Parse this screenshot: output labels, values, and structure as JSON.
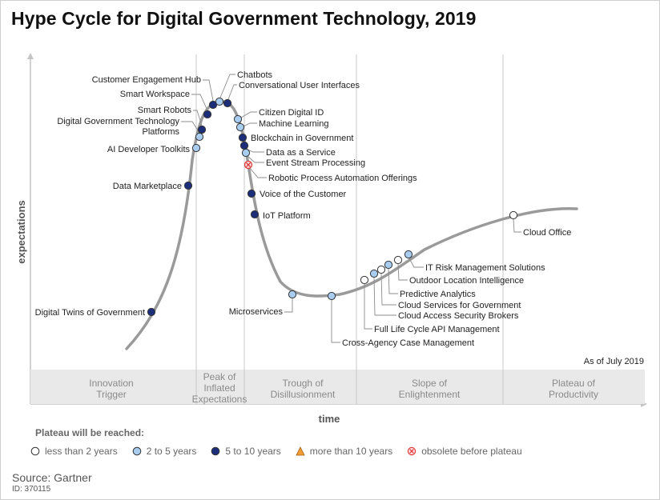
{
  "title": "Hype Cycle for Digital Government Technology, 2019",
  "axes": {
    "y_label": "expectations",
    "x_label": "time"
  },
  "as_of": "As of July 2019",
  "phases": [
    {
      "lines": [
        "Innovation",
        "Trigger"
      ]
    },
    {
      "lines": [
        "Peak of",
        "Inflated",
        "Expectations"
      ]
    },
    {
      "lines": [
        "Trough of",
        "Disillusionment"
      ]
    },
    {
      "lines": [
        "Slope of",
        "Enlightenment"
      ]
    },
    {
      "lines": [
        "Plateau of",
        "Productivity"
      ]
    }
  ],
  "technologies": [
    {
      "name": "Digital Twins of Government",
      "plateau": "5 to 10 years"
    },
    {
      "name": "Data Marketplace",
      "plateau": "5 to 10 years"
    },
    {
      "name": "AI Developer Toolkits",
      "plateau": "2 to 5 years"
    },
    {
      "name": "Digital Government Technology Platforms",
      "lines": [
        "Digital Government Technology",
        "Platforms"
      ],
      "plateau": "2 to 5 years"
    },
    {
      "name": "Smart Robots",
      "plateau": "5 to 10 years"
    },
    {
      "name": "Smart Workspace",
      "plateau": "5 to 10 years"
    },
    {
      "name": "Customer Engagement Hub",
      "plateau": "5 to 10 years"
    },
    {
      "name": "Chatbots",
      "plateau": "2 to 5 years"
    },
    {
      "name": "Conversational User Interfaces",
      "plateau": "5 to 10 years"
    },
    {
      "name": "Citizen Digital ID",
      "plateau": "2 to 5 years"
    },
    {
      "name": "Machine Learning",
      "plateau": "2 to 5 years"
    },
    {
      "name": "Blockchain in Government",
      "plateau": "5 to 10 years"
    },
    {
      "name": "Data as a Service",
      "plateau": "5 to 10 years"
    },
    {
      "name": "Event Stream Processing",
      "plateau": "2 to 5 years"
    },
    {
      "name": "Robotic Process Automation Offerings",
      "plateau": "obsolete before plateau"
    },
    {
      "name": "Voice of the Customer",
      "plateau": "5 to 10 years"
    },
    {
      "name": "IoT Platform",
      "plateau": "5 to 10 years"
    },
    {
      "name": "Microservices",
      "plateau": "2 to 5 years"
    },
    {
      "name": "Cross-Agency Case Management",
      "plateau": "2 to 5 years"
    },
    {
      "name": "Full Life Cycle API Management",
      "plateau": "less than 2 years"
    },
    {
      "name": "Cloud Access Security Brokers",
      "plateau": "2 to 5 years"
    },
    {
      "name": "Cloud Services for Government",
      "plateau": "less than 2 years"
    },
    {
      "name": "Predictive Analytics",
      "plateau": "2 to 5 years"
    },
    {
      "name": "Outdoor Location Intelligence",
      "plateau": "less than 2 years"
    },
    {
      "name": "IT Risk Management Solutions",
      "plateau": "2 to 5 years"
    },
    {
      "name": "Cloud Office",
      "plateau": "less than 2 years"
    }
  ],
  "legend": {
    "title": "Plateau will be reached:",
    "items": [
      {
        "label": "less than 2 years",
        "symbol": "circle",
        "color": "#ffffff"
      },
      {
        "label": "2 to 5 years",
        "symbol": "circle",
        "color": "#a9cdf0"
      },
      {
        "label": "5 to 10 years",
        "symbol": "circle",
        "color": "#1c2e7a"
      },
      {
        "label": "more than 10 years",
        "symbol": "triangle",
        "color": "#f39c34"
      },
      {
        "label": "obsolete before plateau",
        "symbol": "cross-circle",
        "color": "#e03c3c"
      }
    ]
  },
  "colors": {
    "curve": "#9a9a9a",
    "band": "#e9e9e9",
    "divider": "#c8c8c8",
    "dot_stroke": "#333333"
  },
  "source": "Source: Gartner",
  "doc_id": "ID: 370115"
}
